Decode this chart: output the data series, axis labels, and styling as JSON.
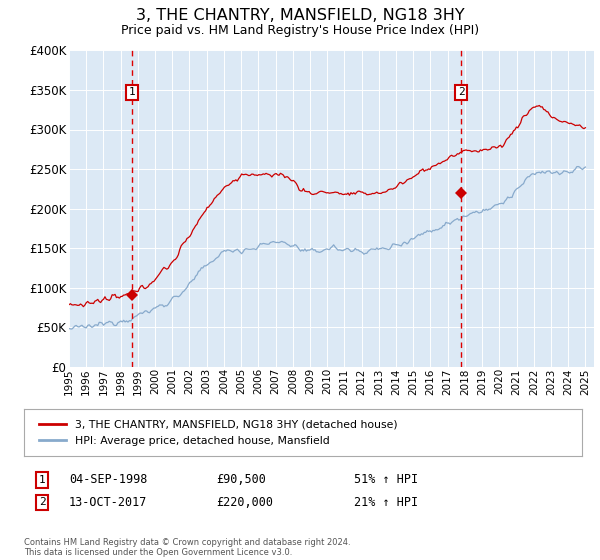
{
  "title": "3, THE CHANTRY, MANSFIELD, NG18 3HY",
  "subtitle": "Price paid vs. HM Land Registry's House Price Index (HPI)",
  "bg_color": "#dce9f5",
  "ylabel_ticks": [
    "£0",
    "£50K",
    "£100K",
    "£150K",
    "£200K",
    "£250K",
    "£300K",
    "£350K",
    "£400K"
  ],
  "ytick_values": [
    0,
    50000,
    100000,
    150000,
    200000,
    250000,
    300000,
    350000,
    400000
  ],
  "ylim": [
    0,
    400000
  ],
  "xlim_start": 1995.0,
  "xlim_end": 2025.5,
  "xtick_years": [
    1995,
    1996,
    1997,
    1998,
    1999,
    2000,
    2001,
    2002,
    2003,
    2004,
    2005,
    2006,
    2007,
    2008,
    2009,
    2010,
    2011,
    2012,
    2013,
    2014,
    2015,
    2016,
    2017,
    2018,
    2019,
    2020,
    2021,
    2022,
    2023,
    2024,
    2025
  ],
  "sale1_x": 1998.67,
  "sale1_y": 90500,
  "sale1_label": "1",
  "sale1_date": "04-SEP-1998",
  "sale1_price": "£90,500",
  "sale1_hpi": "51% ↑ HPI",
  "sale2_x": 2017.78,
  "sale2_y": 220000,
  "sale2_label": "2",
  "sale2_date": "13-OCT-2017",
  "sale2_price": "£220,000",
  "sale2_hpi": "21% ↑ HPI",
  "red_line_color": "#cc0000",
  "blue_line_color": "#88aacc",
  "vline_color": "#dd0000",
  "marker_box_color": "#cc0000",
  "legend_line1": "3, THE CHANTRY, MANSFIELD, NG18 3HY (detached house)",
  "legend_line2": "HPI: Average price, detached house, Mansfield",
  "footnote": "Contains HM Land Registry data © Crown copyright and database right 2024.\nThis data is licensed under the Open Government Licence v3.0.",
  "hpi_base": [
    [
      1995.0,
      48000
    ],
    [
      1995.5,
      49000
    ],
    [
      1996.0,
      50000
    ],
    [
      1996.5,
      52000
    ],
    [
      1997.0,
      54000
    ],
    [
      1997.5,
      56500
    ],
    [
      1998.0,
      58500
    ],
    [
      1998.5,
      61000
    ],
    [
      1999.0,
      65000
    ],
    [
      1999.5,
      69000
    ],
    [
      2000.0,
      74000
    ],
    [
      2000.5,
      79000
    ],
    [
      2001.0,
      85000
    ],
    [
      2001.5,
      93000
    ],
    [
      2002.0,
      103000
    ],
    [
      2002.5,
      117000
    ],
    [
      2003.0,
      128000
    ],
    [
      2003.5,
      138000
    ],
    [
      2004.0,
      145000
    ],
    [
      2004.5,
      148000
    ],
    [
      2005.0,
      148000
    ],
    [
      2005.5,
      149000
    ],
    [
      2006.0,
      152000
    ],
    [
      2006.5,
      155000
    ],
    [
      2007.0,
      158000
    ],
    [
      2007.5,
      157000
    ],
    [
      2008.0,
      154000
    ],
    [
      2008.5,
      148000
    ],
    [
      2009.0,
      144000
    ],
    [
      2009.5,
      147000
    ],
    [
      2010.0,
      150000
    ],
    [
      2010.5,
      150000
    ],
    [
      2011.0,
      148000
    ],
    [
      2011.5,
      147000
    ],
    [
      2012.0,
      147000
    ],
    [
      2012.5,
      147000
    ],
    [
      2013.0,
      148000
    ],
    [
      2013.5,
      150000
    ],
    [
      2014.0,
      154000
    ],
    [
      2014.5,
      158000
    ],
    [
      2015.0,
      163000
    ],
    [
      2015.5,
      168000
    ],
    [
      2016.0,
      172000
    ],
    [
      2016.5,
      176000
    ],
    [
      2017.0,
      181000
    ],
    [
      2017.5,
      186000
    ],
    [
      2018.0,
      192000
    ],
    [
      2018.5,
      196000
    ],
    [
      2019.0,
      198000
    ],
    [
      2019.5,
      200000
    ],
    [
      2020.0,
      204000
    ],
    [
      2020.5,
      213000
    ],
    [
      2021.0,
      223000
    ],
    [
      2021.5,
      234000
    ],
    [
      2022.0,
      243000
    ],
    [
      2022.5,
      248000
    ],
    [
      2023.0,
      246000
    ],
    [
      2023.5,
      244000
    ],
    [
      2024.0,
      246000
    ],
    [
      2024.5,
      250000
    ],
    [
      2025.0,
      252000
    ]
  ],
  "red_base": [
    [
      1995.0,
      78000
    ],
    [
      1995.5,
      79000
    ],
    [
      1996.0,
      80000
    ],
    [
      1996.5,
      82000
    ],
    [
      1997.0,
      84000
    ],
    [
      1997.5,
      86500
    ],
    [
      1998.0,
      88000
    ],
    [
      1998.5,
      91000
    ],
    [
      1999.0,
      96000
    ],
    [
      1999.5,
      103000
    ],
    [
      2000.0,
      112000
    ],
    [
      2000.5,
      122000
    ],
    [
      2001.0,
      132000
    ],
    [
      2001.5,
      148000
    ],
    [
      2002.0,
      166000
    ],
    [
      2002.5,
      185000
    ],
    [
      2003.0,
      200000
    ],
    [
      2003.5,
      215000
    ],
    [
      2004.0,
      225000
    ],
    [
      2004.5,
      235000
    ],
    [
      2005.0,
      240000
    ],
    [
      2005.5,
      245000
    ],
    [
      2006.0,
      242000
    ],
    [
      2006.5,
      240000
    ],
    [
      2007.0,
      245000
    ],
    [
      2007.5,
      242000
    ],
    [
      2008.0,
      235000
    ],
    [
      2008.5,
      225000
    ],
    [
      2009.0,
      218000
    ],
    [
      2009.5,
      220000
    ],
    [
      2010.0,
      222000
    ],
    [
      2010.5,
      220000
    ],
    [
      2011.0,
      218000
    ],
    [
      2011.5,
      218000
    ],
    [
      2012.0,
      218000
    ],
    [
      2012.5,
      220000
    ],
    [
      2013.0,
      220000
    ],
    [
      2013.5,
      222000
    ],
    [
      2014.0,
      228000
    ],
    [
      2014.5,
      234000
    ],
    [
      2015.0,
      240000
    ],
    [
      2015.5,
      248000
    ],
    [
      2016.0,
      252000
    ],
    [
      2016.5,
      258000
    ],
    [
      2017.0,
      262000
    ],
    [
      2017.5,
      268000
    ],
    [
      2018.0,
      272000
    ],
    [
      2018.5,
      274000
    ],
    [
      2019.0,
      275000
    ],
    [
      2019.5,
      275000
    ],
    [
      2020.0,
      278000
    ],
    [
      2020.5,
      288000
    ],
    [
      2021.0,
      302000
    ],
    [
      2021.5,
      318000
    ],
    [
      2022.0,
      330000
    ],
    [
      2022.5,
      328000
    ],
    [
      2023.0,
      318000
    ],
    [
      2023.5,
      310000
    ],
    [
      2024.0,
      308000
    ],
    [
      2024.5,
      305000
    ],
    [
      2025.0,
      303000
    ]
  ]
}
